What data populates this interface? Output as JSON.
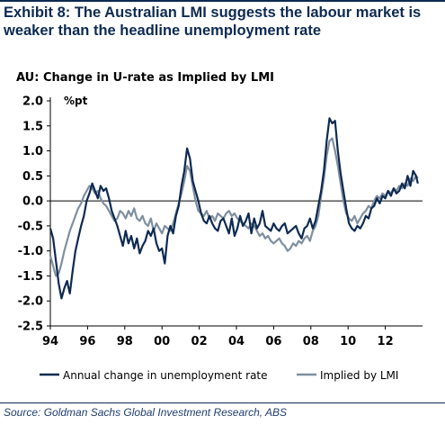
{
  "header": {
    "exhibit_title": "Exhibit 8: The Australian LMI suggests the labour market is weaker than the headline unemployment rate"
  },
  "footer": {
    "source": "Source: Goldman Sachs Global Investment Research, ABS"
  },
  "chart_data": {
    "type": "line",
    "title": "AU: Change in U-rate as Implied by LMI",
    "ylabel": "%pt",
    "xlabel": "",
    "ylim": [
      -2.5,
      2.0
    ],
    "xlim": [
      1994,
      2014
    ],
    "yticks": [
      2.0,
      1.5,
      1.0,
      0.5,
      0.0,
      -0.5,
      -1.0,
      -1.5,
      -2.0,
      -2.5
    ],
    "ytick_labels": [
      "2.0",
      "1.5",
      "1.0",
      "0.5",
      "0.0",
      "-0.5",
      "-1.0",
      "-1.5",
      "-2.0",
      "-2.5"
    ],
    "xticks": [
      1994,
      1996,
      1998,
      2000,
      2002,
      2004,
      2006,
      2008,
      2010,
      2012
    ],
    "xtick_labels": [
      "94",
      "96",
      "98",
      "00",
      "02",
      "04",
      "06",
      "08",
      "10",
      "12"
    ],
    "grid": false,
    "zero_line": true,
    "legend_position": "bottom",
    "series": [
      {
        "name": "Annual change in unemployment rate",
        "color": "#0d2a52",
        "x": [
          1994.0,
          1994.15,
          1994.3,
          1994.45,
          1994.6,
          1994.75,
          1994.9,
          1995.05,
          1995.2,
          1995.35,
          1995.5,
          1995.65,
          1995.8,
          1995.95,
          1996.1,
          1996.25,
          1996.4,
          1996.55,
          1996.7,
          1996.85,
          1997.0,
          1997.15,
          1997.3,
          1997.45,
          1997.6,
          1997.75,
          1997.9,
          1998.05,
          1998.2,
          1998.35,
          1998.5,
          1998.65,
          1998.8,
          1998.95,
          1999.1,
          1999.25,
          1999.4,
          1999.55,
          1999.7,
          1999.85,
          2000.0,
          2000.15,
          2000.3,
          2000.45,
          2000.6,
          2000.75,
          2000.9,
          2001.05,
          2001.2,
          2001.35,
          2001.5,
          2001.65,
          2001.8,
          2001.95,
          2002.1,
          2002.25,
          2002.4,
          2002.55,
          2002.7,
          2002.85,
          2003.0,
          2003.15,
          2003.3,
          2003.45,
          2003.6,
          2003.75,
          2003.9,
          2004.05,
          2004.2,
          2004.35,
          2004.5,
          2004.65,
          2004.8,
          2004.95,
          2005.1,
          2005.25,
          2005.4,
          2005.55,
          2005.7,
          2005.85,
          2006.0,
          2006.15,
          2006.3,
          2006.45,
          2006.6,
          2006.75,
          2006.9,
          2007.05,
          2007.2,
          2007.35,
          2007.5,
          2007.65,
          2007.8,
          2007.95,
          2008.1,
          2008.25,
          2008.4,
          2008.55,
          2008.7,
          2008.85,
          2009.0,
          2009.15,
          2009.3,
          2009.45,
          2009.6,
          2009.75,
          2009.9,
          2010.05,
          2010.2,
          2010.35,
          2010.5,
          2010.65,
          2010.8,
          2010.95,
          2011.1,
          2011.25,
          2011.4,
          2011.55,
          2011.7,
          2011.85,
          2012.0,
          2012.15,
          2012.3,
          2012.45,
          2012.6,
          2012.75,
          2012.9,
          2013.05,
          2013.2,
          2013.35,
          2013.5,
          2013.65,
          2013.75
        ],
        "values": [
          -0.55,
          -0.75,
          -1.2,
          -1.65,
          -1.95,
          -1.75,
          -1.6,
          -1.85,
          -1.4,
          -1.0,
          -0.75,
          -0.5,
          -0.3,
          0.0,
          0.15,
          0.35,
          0.2,
          0.05,
          0.3,
          0.2,
          0.25,
          0.05,
          -0.2,
          -0.35,
          -0.5,
          -0.7,
          -0.9,
          -0.6,
          -0.85,
          -0.7,
          -0.95,
          -0.75,
          -1.05,
          -0.9,
          -0.8,
          -0.6,
          -0.7,
          -0.55,
          -0.85,
          -1.0,
          -0.95,
          -1.25,
          -0.7,
          -0.5,
          -0.65,
          -0.3,
          -0.1,
          0.3,
          0.6,
          1.05,
          0.85,
          0.4,
          0.2,
          0.0,
          -0.25,
          -0.4,
          -0.45,
          -0.3,
          -0.45,
          -0.55,
          -0.6,
          -0.4,
          -0.35,
          -0.5,
          -0.65,
          -0.35,
          -0.7,
          -0.55,
          -0.3,
          -0.5,
          -0.4,
          -0.25,
          -0.65,
          -0.35,
          -0.55,
          -0.45,
          -0.2,
          -0.5,
          -0.55,
          -0.6,
          -0.45,
          -0.55,
          -0.6,
          -0.5,
          -0.45,
          -0.65,
          -0.6,
          -0.55,
          -0.5,
          -0.65,
          -0.75,
          -0.55,
          -0.5,
          -0.35,
          -0.55,
          -0.4,
          -0.1,
          0.2,
          0.6,
          1.2,
          1.65,
          1.55,
          1.6,
          1.0,
          0.55,
          0.2,
          -0.15,
          -0.45,
          -0.55,
          -0.6,
          -0.5,
          -0.55,
          -0.45,
          -0.3,
          -0.35,
          -0.15,
          -0.1,
          0.05,
          -0.05,
          0.1,
          0.05,
          0.2,
          0.1,
          0.25,
          0.15,
          0.2,
          0.35,
          0.25,
          0.5,
          0.3,
          0.6,
          0.5,
          0.35
        ]
      },
      {
        "name": "Implied by LMI",
        "color": "#7f8f9f",
        "x": [
          1994.0,
          1994.15,
          1994.3,
          1994.45,
          1994.6,
          1994.75,
          1994.9,
          1995.05,
          1995.2,
          1995.35,
          1995.5,
          1995.65,
          1995.8,
          1995.95,
          1996.1,
          1996.25,
          1996.4,
          1996.55,
          1996.7,
          1996.85,
          1997.0,
          1997.15,
          1997.3,
          1997.45,
          1997.6,
          1997.75,
          1997.9,
          1998.05,
          1998.2,
          1998.35,
          1998.5,
          1998.65,
          1998.8,
          1998.95,
          1999.1,
          1999.25,
          1999.4,
          1999.55,
          1999.7,
          1999.85,
          2000.0,
          2000.15,
          2000.3,
          2000.45,
          2000.6,
          2000.75,
          2000.9,
          2001.05,
          2001.2,
          2001.35,
          2001.5,
          2001.65,
          2001.8,
          2001.95,
          2002.1,
          2002.25,
          2002.4,
          2002.55,
          2002.7,
          2002.85,
          2003.0,
          2003.15,
          2003.3,
          2003.45,
          2003.6,
          2003.75,
          2003.9,
          2004.05,
          2004.2,
          2004.35,
          2004.5,
          2004.65,
          2004.8,
          2004.95,
          2005.1,
          2005.25,
          2005.4,
          2005.55,
          2005.7,
          2005.85,
          2006.0,
          2006.15,
          2006.3,
          2006.45,
          2006.6,
          2006.75,
          2006.9,
          2007.05,
          2007.2,
          2007.35,
          2007.5,
          2007.65,
          2007.8,
          2007.95,
          2008.1,
          2008.25,
          2008.4,
          2008.55,
          2008.7,
          2008.85,
          2009.0,
          2009.15,
          2009.3,
          2009.45,
          2009.6,
          2009.75,
          2009.9,
          2010.05,
          2010.2,
          2010.35,
          2010.5,
          2010.65,
          2010.8,
          2010.95,
          2011.1,
          2011.25,
          2011.4,
          2011.55,
          2011.7,
          2011.85,
          2012.0,
          2012.15,
          2012.3,
          2012.45,
          2012.6,
          2012.75,
          2012.9,
          2013.05,
          2013.2,
          2013.35,
          2013.5,
          2013.65,
          2013.75
        ],
        "values": [
          -1.1,
          -1.3,
          -1.5,
          -1.45,
          -1.25,
          -1.0,
          -0.8,
          -0.6,
          -0.45,
          -0.3,
          -0.15,
          -0.05,
          0.1,
          0.2,
          0.3,
          0.25,
          0.15,
          0.2,
          0.05,
          -0.05,
          -0.1,
          -0.2,
          -0.3,
          -0.4,
          -0.35,
          -0.2,
          -0.25,
          -0.35,
          -0.2,
          -0.3,
          -0.15,
          -0.35,
          -0.4,
          -0.3,
          -0.45,
          -0.5,
          -0.35,
          -0.6,
          -0.45,
          -0.55,
          -0.65,
          -0.5,
          -0.55,
          -0.6,
          -0.45,
          -0.25,
          -0.05,
          0.15,
          0.4,
          0.7,
          0.6,
          0.3,
          0.0,
          -0.2,
          -0.25,
          -0.3,
          -0.2,
          -0.35,
          -0.3,
          -0.4,
          -0.25,
          -0.3,
          -0.35,
          -0.25,
          -0.2,
          -0.3,
          -0.25,
          -0.35,
          -0.4,
          -0.45,
          -0.5,
          -0.55,
          -0.45,
          -0.5,
          -0.6,
          -0.7,
          -0.65,
          -0.75,
          -0.7,
          -0.8,
          -0.85,
          -0.8,
          -0.75,
          -0.85,
          -0.9,
          -1.0,
          -0.95,
          -0.85,
          -0.9,
          -0.8,
          -0.85,
          -0.75,
          -0.7,
          -0.8,
          -0.6,
          -0.5,
          -0.3,
          0.1,
          0.45,
          0.9,
          1.2,
          1.25,
          1.0,
          0.7,
          0.35,
          0.0,
          -0.25,
          -0.35,
          -0.4,
          -0.3,
          -0.45,
          -0.35,
          -0.25,
          -0.2,
          -0.1,
          -0.15,
          0.0,
          0.1,
          0.05,
          0.15,
          0.1,
          0.2,
          0.15,
          0.25,
          0.2,
          0.3,
          0.25,
          0.35,
          0.3,
          0.45,
          0.4,
          0.5,
          0.45
        ]
      }
    ]
  }
}
